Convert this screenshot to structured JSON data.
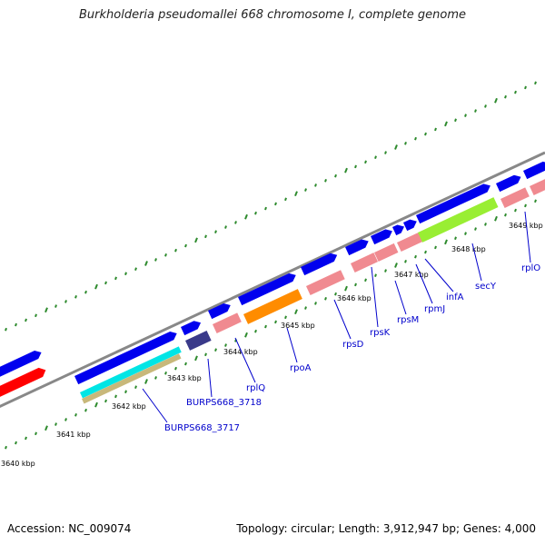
{
  "title": "Burkholderia pseudomallei 668 chromosome I, complete genome",
  "footer": {
    "accession": "Accession: NC_009074",
    "topology": "Topology: circular; Length: 3,912,947 bp; Genes: 4,000"
  },
  "colors": {
    "backbone": "#888888",
    "forward_gene": "#0000ee",
    "reverse_rna": "#f08a90",
    "ruler_tick": "#2e8b2e",
    "gene_label": "#0000cc",
    "red_feature": "#ff0000",
    "cyan_feature": "#00e5e5",
    "tan_feature": "#c8b87a",
    "orange_feature": "#ff8c00",
    "lime_feature": "#99ee33",
    "navy_feature": "#3a3a8a"
  },
  "ticks": [
    {
      "label": "3640 kbp"
    },
    {
      "label": "3641 kbp"
    },
    {
      "label": "3642 kbp"
    },
    {
      "label": "3643 kbp"
    },
    {
      "label": "3644 kbp"
    },
    {
      "label": "3645 kbp"
    },
    {
      "label": "3646 kbp"
    },
    {
      "label": "3647 kbp"
    },
    {
      "label": "3648 kbp"
    },
    {
      "label": "3649 kbp"
    }
  ],
  "gene_labels": [
    {
      "name": "BURPS668_3717"
    },
    {
      "name": "BURPS668_3718"
    },
    {
      "name": "rplQ"
    },
    {
      "name": "rpoA"
    },
    {
      "name": "rpsD"
    },
    {
      "name": "rpsK"
    },
    {
      "name": "rpsM"
    },
    {
      "name": "rpmJ"
    },
    {
      "name": "infA"
    },
    {
      "name": "secY"
    },
    {
      "name": "rplO"
    }
  ]
}
